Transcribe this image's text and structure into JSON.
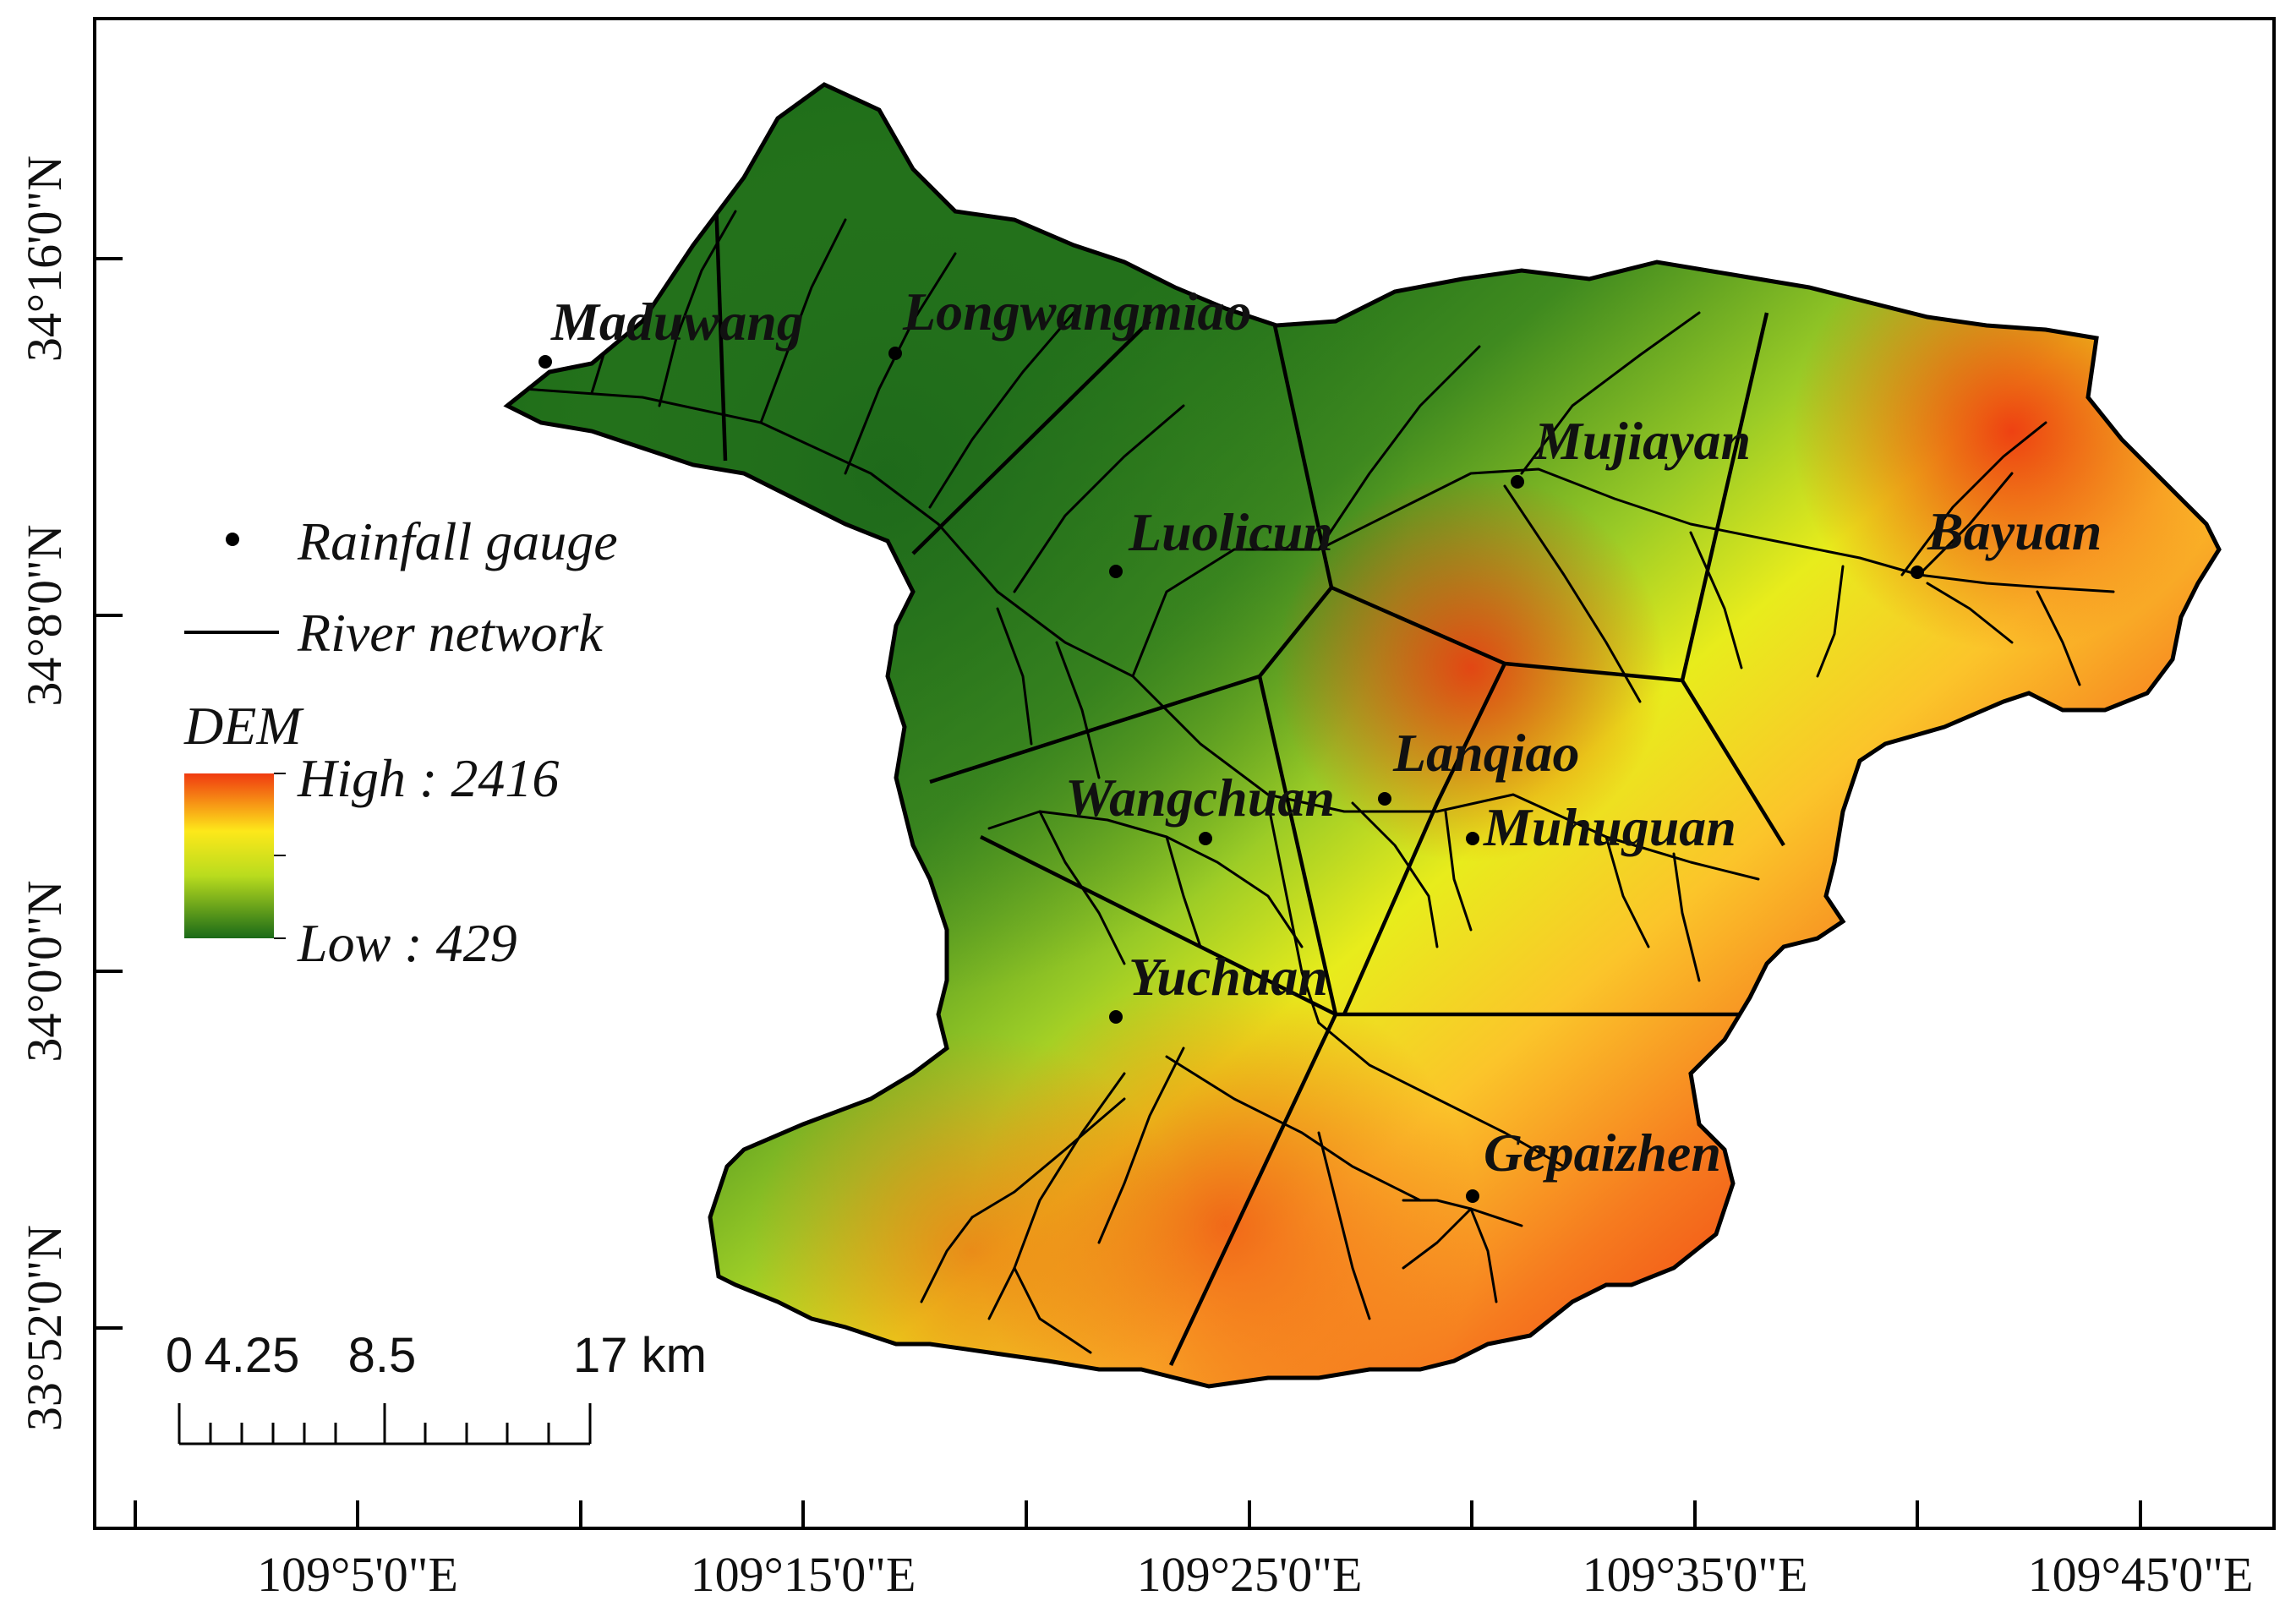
{
  "map": {
    "x_ticks": [
      "109°5'0\"E",
      "109°15'0\"E",
      "109°25'0\"E",
      "109°35'0\"E",
      "109°45'0\"E"
    ],
    "y_ticks": [
      "34°16'0\"N",
      "34°8'0\"N",
      "34°0'0\"N",
      "33°52'0\"N"
    ],
    "stations": [
      {
        "name": "Maduwang"
      },
      {
        "name": "Longwangmiao"
      },
      {
        "name": "Mujiayan"
      },
      {
        "name": "Luolicun"
      },
      {
        "name": "Bayuan"
      },
      {
        "name": "Lanqiao"
      },
      {
        "name": "Wangchuan"
      },
      {
        "name": "Muhuguan"
      },
      {
        "name": "Yuchuan"
      },
      {
        "name": "Gepaizhen"
      }
    ]
  },
  "legend": {
    "gauge_label": "Rainfall gauge",
    "river_label": "River network",
    "dem_title": "DEM",
    "dem_high": "High : 2416",
    "dem_low": "Low : 429",
    "ramp_colors": [
      "#f03a10",
      "#fde81a",
      "#b9dc1e",
      "#1a6a18"
    ]
  },
  "scalebar": {
    "labels": [
      "0",
      "4.25",
      "8.5",
      "17 km"
    ]
  }
}
